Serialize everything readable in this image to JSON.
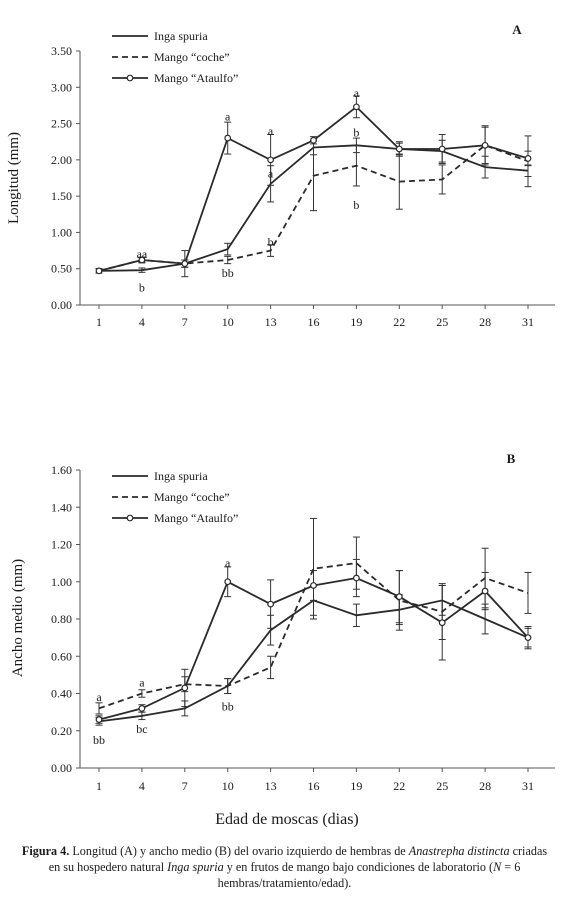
{
  "chart_data": [
    {
      "type": "line",
      "panel_label": "A",
      "ylabel": "Longitud  (mm)",
      "xlabel": "",
      "categories": [
        "1",
        "4",
        "7",
        "10",
        "13",
        "16",
        "19",
        "22",
        "25",
        "28",
        "31"
      ],
      "ylim": [
        0,
        3.5
      ],
      "yticks": [
        "0.00",
        "0.50",
        "1.00",
        "1.50",
        "2.00",
        "2.50",
        "3.00",
        "3.50"
      ],
      "legend_position": "top-left",
      "series": [
        {
          "name": "Inga spuria",
          "style": "solid",
          "values": [
            0.47,
            0.48,
            0.57,
            0.77,
            1.67,
            2.17,
            2.2,
            2.15,
            2.12,
            1.9,
            1.85
          ],
          "errors": [
            0.03,
            0.03,
            0.05,
            0.08,
            0.25,
            0.1,
            0.1,
            0.08,
            0.15,
            0.15,
            0.08
          ]
        },
        {
          "name": "Mango “coche”",
          "style": "dashed",
          "values": [
            0.47,
            0.62,
            0.57,
            0.62,
            0.75,
            1.78,
            1.92,
            1.7,
            1.73,
            2.2,
            1.98
          ],
          "errors": [
            0.03,
            0.03,
            0.18,
            0.05,
            0.08,
            0.48,
            0.28,
            0.38,
            0.2,
            0.25,
            0.35
          ]
        },
        {
          "name": "Mango “Ataulfo”",
          "style": "solid-circle",
          "values": [
            0.47,
            0.62,
            0.57,
            2.3,
            2.0,
            2.27,
            2.73,
            2.15,
            2.15,
            2.2,
            2.02
          ],
          "errors": [
            0.03,
            0.04,
            0.05,
            0.22,
            0.35,
            0.05,
            0.15,
            0.1,
            0.2,
            0.27,
            0.1
          ]
        }
      ],
      "annotations": [
        {
          "x": "4",
          "y": 0.7,
          "text": "aa"
        },
        {
          "x": "4",
          "y": 0.24,
          "text": "b"
        },
        {
          "x": "10",
          "y": 2.6,
          "text": "a"
        },
        {
          "x": "10",
          "y": 0.44,
          "text": "bb"
        },
        {
          "x": "13",
          "y": 2.4,
          "text": "a"
        },
        {
          "x": "13",
          "y": 1.81,
          "text": "a"
        },
        {
          "x": "13",
          "y": 0.87,
          "text": "b"
        },
        {
          "x": "19",
          "y": 2.92,
          "text": "a"
        },
        {
          "x": "19",
          "y": 2.38,
          "text": "b"
        },
        {
          "x": "19",
          "y": 1.38,
          "text": "b"
        }
      ]
    },
    {
      "type": "line",
      "panel_label": "B",
      "ylabel": "Ancho medio  (mm)",
      "xlabel": "Edad de moscas  (dias)",
      "categories": [
        "1",
        "4",
        "7",
        "10",
        "13",
        "16",
        "19",
        "22",
        "25",
        "28",
        "31"
      ],
      "ylim": [
        0,
        1.6
      ],
      "yticks": [
        "0.00",
        "0.20",
        "0.40",
        "0.60",
        "0.80",
        "1.00",
        "1.20",
        "1.40",
        "1.60"
      ],
      "legend_position": "top-left",
      "series": [
        {
          "name": "Inga spuria",
          "style": "solid",
          "values": [
            0.25,
            0.28,
            0.32,
            0.44,
            0.74,
            0.9,
            0.82,
            0.85,
            0.9,
            0.8,
            0.7
          ],
          "errors": [
            0.02,
            0.02,
            0.04,
            0.04,
            0.08,
            0.08,
            0.06,
            0.08,
            0.08,
            0.08,
            0.05
          ]
        },
        {
          "name": "Mango “coche”",
          "style": "dashed",
          "values": [
            0.32,
            0.4,
            0.45,
            0.44,
            0.54,
            1.07,
            1.1,
            0.9,
            0.84,
            1.02,
            0.94
          ],
          "errors": [
            0.03,
            0.02,
            0.04,
            0.04,
            0.06,
            0.27,
            0.14,
            0.16,
            0.15,
            0.16,
            0.11
          ]
        },
        {
          "name": "Mango “Ataulfo”",
          "style": "solid-circle",
          "values": [
            0.26,
            0.32,
            0.43,
            1.0,
            0.88,
            0.98,
            1.02,
            0.92,
            0.78,
            0.95,
            0.7
          ],
          "errors": [
            0.02,
            0.02,
            0.1,
            0.08,
            0.13,
            0.08,
            0.1,
            0.14,
            0.2,
            0.1,
            0.06
          ]
        }
      ],
      "annotations": [
        {
          "x": "1",
          "y": 0.38,
          "text": "a"
        },
        {
          "x": "1",
          "y": 0.15,
          "text": "bb"
        },
        {
          "x": "4",
          "y": 0.46,
          "text": "a"
        },
        {
          "x": "4",
          "y": 0.21,
          "text": "bc"
        },
        {
          "x": "10",
          "y": 1.1,
          "text": "a"
        },
        {
          "x": "10",
          "y": 0.33,
          "text": "bb"
        }
      ]
    }
  ],
  "caption": {
    "prefix": "Figura 4.",
    "text1": " Longitud (A) y ancho medio (B) del ovario izquierdo de hembras de ",
    "italic1": "Anastrepha distincta",
    "text2": " criadas en su hospedero natural ",
    "italic2": "Inga spuria",
    "text3": " y en frutos de mango bajo condiciones de laboratorio (",
    "italic3": "N",
    "text4": " = 6 hembras/tratamiento/edad)."
  }
}
